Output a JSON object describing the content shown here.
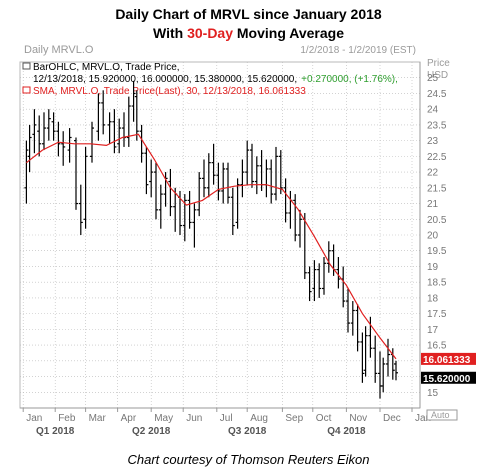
{
  "title": {
    "line1": "Daily Chart of MRVL since January 2018",
    "line2_prefix": "With ",
    "line2_highlight": "30-Day",
    "line2_suffix": " Moving Average"
  },
  "chart_header": {
    "instrument": "Daily MRVL.O",
    "date_range": "1/2/2018 - 1/2/2019 (EST)",
    "axis_title_line1": "Price",
    "axis_title_line2": "USD",
    "legend_ohlc_line1": "BarOHLC, MRVL.O, Trade Price,",
    "legend_ohlc_line2_values": "12/13/2018, 15.920000, 16.000000, 15.380000, 15.620000,",
    "legend_ohlc_change": "+0.270000, (+1.76%),",
    "legend_sma": "SMA, MRVL.O, Trade Price(Last), 30, 12/13/2018, 16.061333",
    "auto_label": "Auto"
  },
  "caption": "Chart courtesy of Thomson Reuters Eikon",
  "colors": {
    "bars": "#000000",
    "sma": "#e02020",
    "grid": "#b8b8b8",
    "label_sma_bg": "#e02020",
    "label_last_bg": "#000000",
    "change_positive": "#2e9e2e",
    "header_gray": "#9a9a9a"
  },
  "chart_data": {
    "type": "line",
    "series": [
      {
        "kind": "ohlc",
        "points": [
          {
            "day": 0,
            "o": 21.5,
            "h": 23.0,
            "l": 21.0,
            "c": 22.7
          },
          {
            "day": 2,
            "o": 22.5,
            "h": 23.5,
            "l": 22.0,
            "c": 23.1
          },
          {
            "day": 5,
            "o": 23.2,
            "h": 24.0,
            "l": 22.6,
            "c": 23.5
          },
          {
            "day": 8,
            "o": 23.3,
            "h": 23.8,
            "l": 22.5,
            "c": 22.9
          },
          {
            "day": 11,
            "o": 22.9,
            "h": 23.9,
            "l": 22.7,
            "c": 23.4
          },
          {
            "day": 14,
            "o": 23.4,
            "h": 24.0,
            "l": 23.0,
            "c": 23.7
          },
          {
            "day": 17,
            "o": 23.6,
            "h": 23.9,
            "l": 23.0,
            "c": 23.3
          },
          {
            "day": 20,
            "o": 23.3,
            "h": 23.6,
            "l": 22.5,
            "c": 22.9
          },
          {
            "day": 23,
            "o": 22.9,
            "h": 23.3,
            "l": 22.2,
            "c": 22.8
          },
          {
            "day": 27,
            "o": 22.7,
            "h": 23.4,
            "l": 22.3,
            "c": 23.1
          },
          {
            "day": 31,
            "o": 23.0,
            "h": 23.1,
            "l": 20.8,
            "c": 21.0
          },
          {
            "day": 34,
            "o": 21.0,
            "h": 21.6,
            "l": 20.0,
            "c": 20.4
          },
          {
            "day": 37,
            "o": 20.5,
            "h": 22.8,
            "l": 20.2,
            "c": 22.5
          },
          {
            "day": 41,
            "o": 22.5,
            "h": 23.6,
            "l": 22.3,
            "c": 23.4
          },
          {
            "day": 45,
            "o": 23.3,
            "h": 24.5,
            "l": 23.0,
            "c": 24.2
          },
          {
            "day": 48,
            "o": 24.2,
            "h": 24.6,
            "l": 23.2,
            "c": 23.5
          },
          {
            "day": 52,
            "o": 23.5,
            "h": 23.9,
            "l": 22.9,
            "c": 23.6
          },
          {
            "day": 55,
            "o": 23.6,
            "h": 24.0,
            "l": 22.6,
            "c": 22.8
          },
          {
            "day": 58,
            "o": 22.9,
            "h": 23.7,
            "l": 22.6,
            "c": 23.4
          },
          {
            "day": 61,
            "o": 23.4,
            "h": 23.9,
            "l": 22.8,
            "c": 23.1
          },
          {
            "day": 64,
            "o": 23.1,
            "h": 24.4,
            "l": 22.8,
            "c": 24.1
          },
          {
            "day": 67,
            "o": 24.1,
            "h": 24.9,
            "l": 23.6,
            "c": 24.5
          },
          {
            "day": 69,
            "o": 24.4,
            "h": 24.6,
            "l": 23.0,
            "c": 23.3
          },
          {
            "day": 72,
            "o": 23.3,
            "h": 23.5,
            "l": 22.3,
            "c": 22.6
          },
          {
            "day": 75,
            "o": 22.6,
            "h": 22.8,
            "l": 21.3,
            "c": 21.6
          },
          {
            "day": 78,
            "o": 21.7,
            "h": 22.4,
            "l": 21.2,
            "c": 22.0
          },
          {
            "day": 81,
            "o": 22.0,
            "h": 22.3,
            "l": 20.5,
            "c": 20.8
          },
          {
            "day": 84,
            "o": 20.8,
            "h": 21.6,
            "l": 20.2,
            "c": 21.3
          },
          {
            "day": 87,
            "o": 21.3,
            "h": 22.0,
            "l": 20.9,
            "c": 21.8
          },
          {
            "day": 90,
            "o": 21.7,
            "h": 22.1,
            "l": 20.6,
            "c": 20.9
          },
          {
            "day": 93,
            "o": 20.9,
            "h": 21.5,
            "l": 20.1,
            "c": 21.3
          },
          {
            "day": 96,
            "o": 21.2,
            "h": 21.4,
            "l": 20.0,
            "c": 20.3
          },
          {
            "day": 99,
            "o": 20.3,
            "h": 21.3,
            "l": 19.8,
            "c": 21.1
          },
          {
            "day": 102,
            "o": 21.1,
            "h": 21.4,
            "l": 20.2,
            "c": 20.4
          },
          {
            "day": 105,
            "o": 20.4,
            "h": 21.0,
            "l": 19.6,
            "c": 20.8
          },
          {
            "day": 108,
            "o": 20.8,
            "h": 22.0,
            "l": 20.6,
            "c": 21.8
          },
          {
            "day": 111,
            "o": 21.8,
            "h": 22.4,
            "l": 21.2,
            "c": 21.5
          },
          {
            "day": 114,
            "o": 21.5,
            "h": 22.6,
            "l": 21.2,
            "c": 22.3
          },
          {
            "day": 117,
            "o": 22.3,
            "h": 22.9,
            "l": 21.6,
            "c": 21.9
          },
          {
            "day": 120,
            "o": 21.9,
            "h": 22.3,
            "l": 21.1,
            "c": 21.4
          },
          {
            "day": 123,
            "o": 21.4,
            "h": 22.3,
            "l": 21.0,
            "c": 22.1
          },
          {
            "day": 126,
            "o": 22.1,
            "h": 22.3,
            "l": 21.0,
            "c": 21.2
          },
          {
            "day": 129,
            "o": 21.2,
            "h": 21.5,
            "l": 20.0,
            "c": 20.3
          },
          {
            "day": 132,
            "o": 20.4,
            "h": 21.8,
            "l": 20.2,
            "c": 21.6
          },
          {
            "day": 135,
            "o": 21.6,
            "h": 22.4,
            "l": 21.2,
            "c": 22.0
          },
          {
            "day": 138,
            "o": 22.0,
            "h": 23.0,
            "l": 21.6,
            "c": 22.7
          },
          {
            "day": 141,
            "o": 22.7,
            "h": 22.9,
            "l": 21.5,
            "c": 21.7
          },
          {
            "day": 144,
            "o": 21.7,
            "h": 22.5,
            "l": 21.3,
            "c": 22.2
          },
          {
            "day": 147,
            "o": 22.2,
            "h": 22.7,
            "l": 21.4,
            "c": 21.6
          },
          {
            "day": 150,
            "o": 21.6,
            "h": 22.4,
            "l": 21.2,
            "c": 22.1
          },
          {
            "day": 153,
            "o": 22.1,
            "h": 22.4,
            "l": 21.0,
            "c": 21.3
          },
          {
            "day": 156,
            "o": 21.3,
            "h": 22.8,
            "l": 21.1,
            "c": 22.5
          },
          {
            "day": 159,
            "o": 22.5,
            "h": 22.7,
            "l": 21.3,
            "c": 21.5
          },
          {
            "day": 162,
            "o": 21.5,
            "h": 21.8,
            "l": 20.4,
            "c": 20.7
          },
          {
            "day": 165,
            "o": 20.7,
            "h": 21.4,
            "l": 20.2,
            "c": 21.1
          },
          {
            "day": 168,
            "o": 21.1,
            "h": 21.3,
            "l": 19.8,
            "c": 20.0
          },
          {
            "day": 171,
            "o": 20.0,
            "h": 20.8,
            "l": 19.6,
            "c": 20.5
          },
          {
            "day": 174,
            "o": 20.5,
            "h": 20.7,
            "l": 18.6,
            "c": 18.8
          },
          {
            "day": 177,
            "o": 18.8,
            "h": 19.0,
            "l": 17.9,
            "c": 18.2
          },
          {
            "day": 180,
            "o": 18.3,
            "h": 19.2,
            "l": 17.9,
            "c": 18.9
          },
          {
            "day": 183,
            "o": 18.9,
            "h": 19.1,
            "l": 18.0,
            "c": 18.3
          },
          {
            "day": 186,
            "o": 18.3,
            "h": 19.3,
            "l": 18.1,
            "c": 19.1
          },
          {
            "day": 189,
            "o": 19.1,
            "h": 19.8,
            "l": 18.8,
            "c": 19.5
          },
          {
            "day": 192,
            "o": 19.5,
            "h": 19.7,
            "l": 18.7,
            "c": 18.9
          },
          {
            "day": 195,
            "o": 18.9,
            "h": 19.3,
            "l": 18.3,
            "c": 18.6
          },
          {
            "day": 198,
            "o": 18.6,
            "h": 19.0,
            "l": 17.7,
            "c": 17.9
          },
          {
            "day": 201,
            "o": 17.9,
            "h": 18.3,
            "l": 16.9,
            "c": 17.2
          },
          {
            "day": 204,
            "o": 17.2,
            "h": 17.9,
            "l": 16.8,
            "c": 17.6
          },
          {
            "day": 207,
            "o": 17.6,
            "h": 17.8,
            "l": 16.3,
            "c": 16.6
          },
          {
            "day": 210,
            "o": 16.6,
            "h": 16.9,
            "l": 15.3,
            "c": 15.6
          },
          {
            "day": 212,
            "o": 15.7,
            "h": 17.1,
            "l": 15.5,
            "c": 16.8
          },
          {
            "day": 215,
            "o": 16.8,
            "h": 17.4,
            "l": 16.1,
            "c": 16.4
          },
          {
            "day": 218,
            "o": 16.4,
            "h": 16.8,
            "l": 15.3,
            "c": 15.6
          },
          {
            "day": 221,
            "o": 15.6,
            "h": 16.3,
            "l": 14.8,
            "c": 15.2
          },
          {
            "day": 223,
            "o": 15.2,
            "h": 16.1,
            "l": 15.0,
            "c": 15.9
          },
          {
            "day": 226,
            "o": 15.9,
            "h": 16.7,
            "l": 15.5,
            "c": 16.2
          },
          {
            "day": 229,
            "o": 16.2,
            "h": 16.4,
            "l": 15.4,
            "c": 15.7
          },
          {
            "day": 231,
            "o": 15.9,
            "h": 16.0,
            "l": 15.38,
            "c": 15.62
          }
        ]
      },
      {
        "kind": "sma",
        "name": "SMA 30",
        "x": [
          0,
          10,
          20,
          30,
          40,
          50,
          60,
          70,
          80,
          90,
          100,
          110,
          120,
          130,
          140,
          150,
          160,
          170,
          180,
          190,
          200,
          210,
          220,
          231
        ],
        "y": [
          22.3,
          22.7,
          22.95,
          22.9,
          22.9,
          22.85,
          23.1,
          23.2,
          22.4,
          21.5,
          20.95,
          21.1,
          21.45,
          21.55,
          21.6,
          21.6,
          21.45,
          20.8,
          19.95,
          19.05,
          18.4,
          17.5,
          16.8,
          16.061333
        ]
      }
    ],
    "ylim": [
      14.5,
      25.5
    ],
    "yticks": [
      15,
      15.5,
      16,
      16.5,
      17,
      17.5,
      18,
      18.5,
      19,
      19.5,
      20,
      20.5,
      21,
      21.5,
      22,
      22.5,
      23,
      23.5,
      24,
      24.5,
      25
    ],
    "xticks": [
      {
        "day": -2,
        "label": "Jan"
      },
      {
        "day": 18,
        "label": "Feb"
      },
      {
        "day": 37,
        "label": "Mar"
      },
      {
        "day": 57,
        "label": "Apr"
      },
      {
        "day": 78,
        "label": "May"
      },
      {
        "day": 98,
        "label": "Jun"
      },
      {
        "day": 119,
        "label": "Jul"
      },
      {
        "day": 138,
        "label": "Aug"
      },
      {
        "day": 160,
        "label": "Sep"
      },
      {
        "day": 179,
        "label": "Oct"
      },
      {
        "day": 200,
        "label": "Nov"
      },
      {
        "day": 221,
        "label": "Dec"
      },
      {
        "day": 241,
        "label": "Jan"
      }
    ],
    "quarters": [
      {
        "day": 18,
        "label": "Q1 2018"
      },
      {
        "day": 78,
        "label": "Q2 2018"
      },
      {
        "day": 138,
        "label": "Q3 2018"
      },
      {
        "day": 200,
        "label": "Q4 2018"
      }
    ],
    "last_sma_label": "16.061333",
    "last_price_label": "15.620000",
    "grid": true
  }
}
